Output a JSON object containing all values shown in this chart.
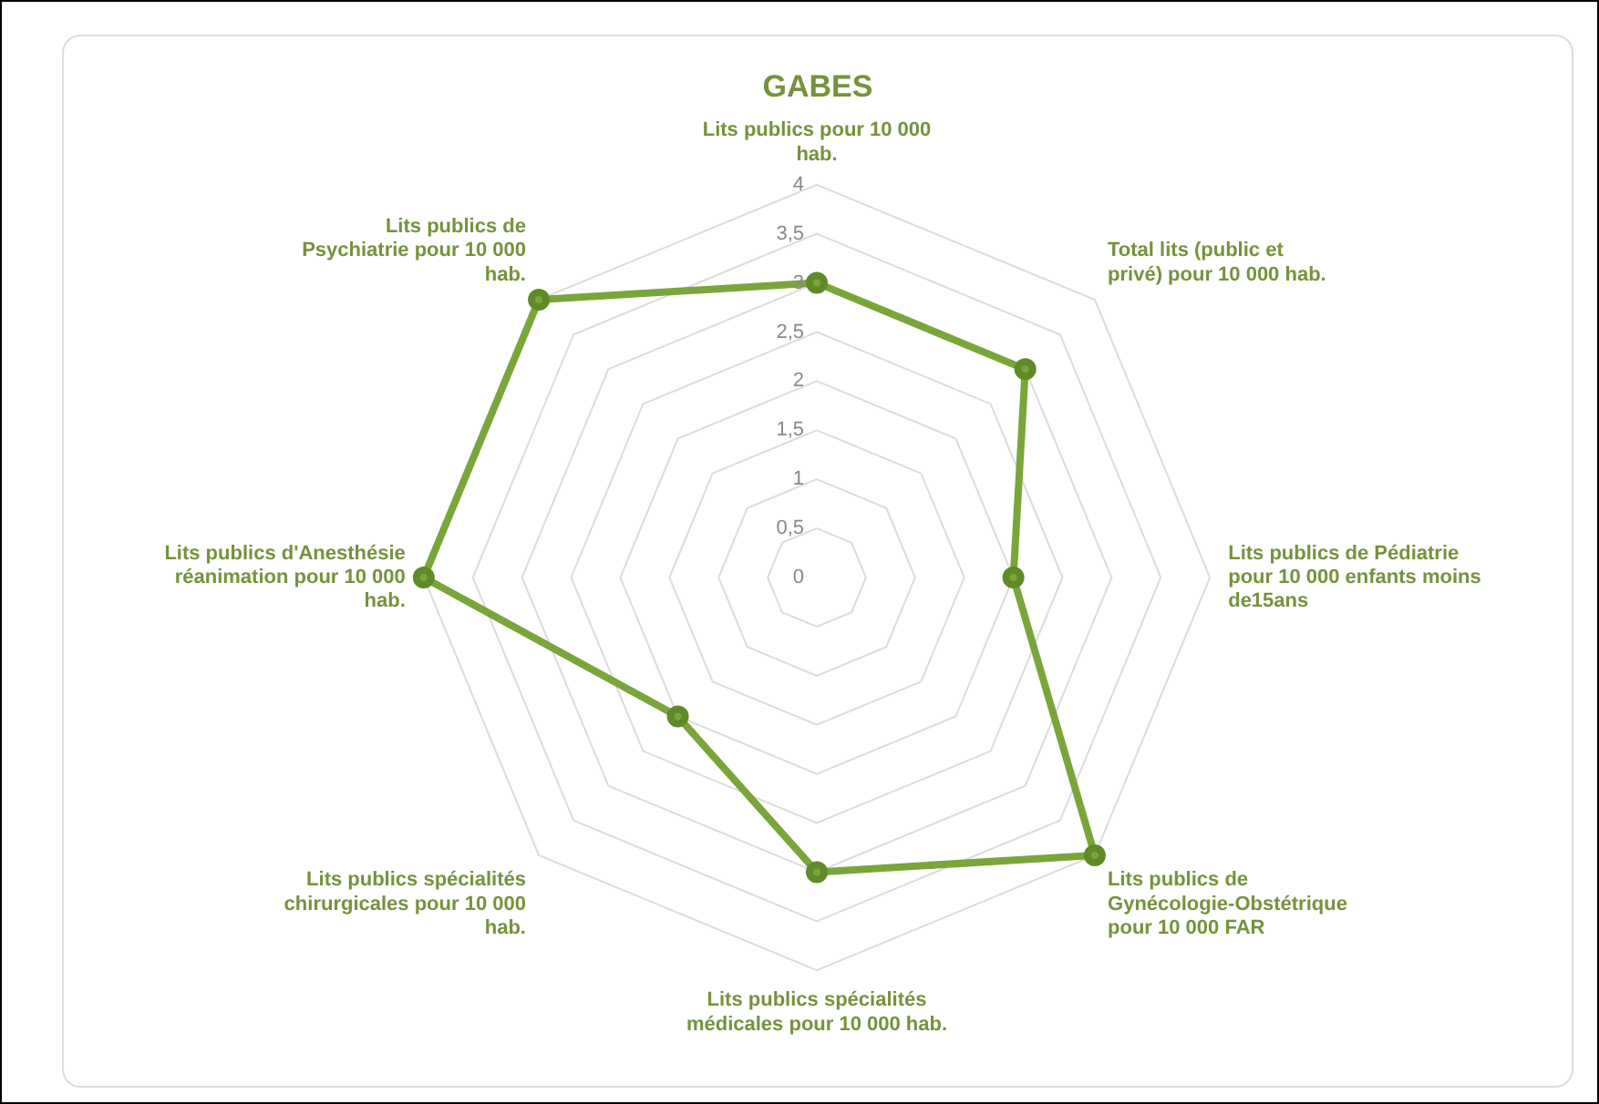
{
  "chart_data": {
    "type": "radar",
    "title": "GABES",
    "categories": [
      "Lits publics pour 10 000 hab.",
      "Total lits (public et privé) pour 10 000 hab.",
      "Lits publics de Pédiatrie pour 10 000 enfants moins de15ans",
      "Lits publics de Gynécologie-Obstétrique pour 10 000 FAR",
      "Lits publics spécialités médicales pour 10 000 hab.",
      "Lits publics spécialités chirurgicales pour 10 000 hab.",
      "Lits publics d'Anesthésie réanimation pour 10 000 hab.",
      "Lits publics de Psychiatrie pour 10 000 hab."
    ],
    "series": [
      {
        "color": "#7aa53a",
        "values": [
          3,
          3,
          2,
          4,
          3,
          2,
          4,
          4
        ]
      }
    ],
    "ylim": [
      0,
      4
    ],
    "yticks": [
      0,
      {
        "value": 0.5,
        "label": "0,5"
      },
      1,
      {
        "value": 1.5,
        "label": "1,5"
      },
      2,
      {
        "value": 2.5,
        "label": "2,5"
      },
      3,
      {
        "value": 3.5,
        "label": "3,5"
      },
      4
    ],
    "grid": true,
    "marker": "circle",
    "legend": false
  }
}
